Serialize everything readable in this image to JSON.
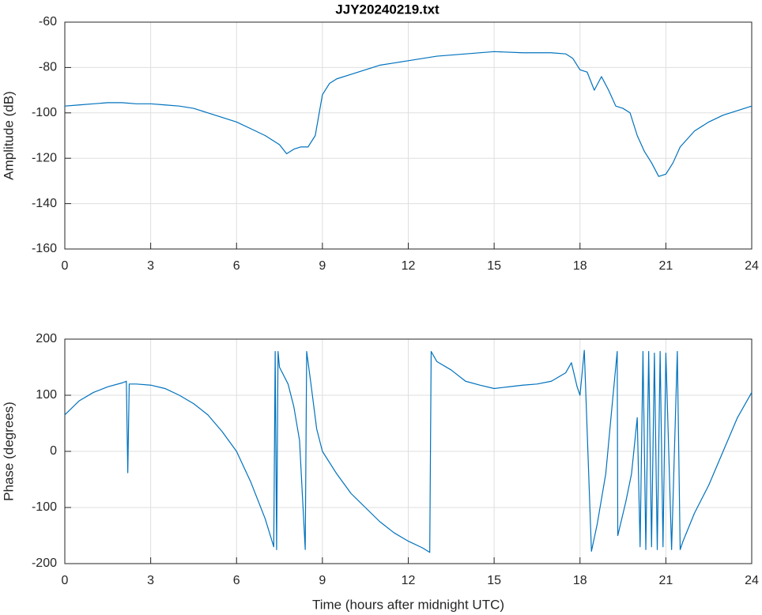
{
  "chart_data": [
    {
      "type": "line",
      "title": "JJY20240219.txt",
      "ylabel": "Amplitude (dB)",
      "xlim": [
        0,
        24
      ],
      "xticks": [
        0,
        3,
        6,
        9,
        12,
        15,
        18,
        21,
        24
      ],
      "ylim": [
        -160,
        -60
      ],
      "yticks": [
        -160,
        -140,
        -120,
        -100,
        -80,
        -60
      ],
      "grid": true,
      "series": [
        {
          "name": "Amplitude",
          "color": "#0072bd",
          "x": [
            0,
            0.5,
            1,
            1.5,
            2,
            2.5,
            3,
            3.5,
            4,
            4.5,
            5,
            5.5,
            6,
            6.5,
            7,
            7.5,
            7.75,
            8,
            8.25,
            8.5,
            8.75,
            9,
            9.25,
            9.5,
            10,
            10.5,
            11,
            11.5,
            12,
            12.5,
            13,
            14,
            15,
            16,
            17,
            17.5,
            17.75,
            18,
            18.25,
            18.5,
            18.75,
            19,
            19.25,
            19.5,
            19.75,
            20,
            20.25,
            20.5,
            20.75,
            21,
            21.25,
            21.5,
            22,
            22.5,
            23,
            23.5,
            24
          ],
          "values": [
            -97,
            -96.5,
            -96,
            -95.5,
            -95.5,
            -96,
            -96,
            -96.5,
            -97,
            -98,
            -100,
            -102,
            -104,
            -107,
            -110,
            -114,
            -118,
            -116,
            -115,
            -115,
            -110,
            -92,
            -87,
            -85,
            -83,
            -81,
            -79,
            -78,
            -77,
            -76,
            -75,
            -74,
            -73,
            -73.5,
            -73.5,
            -74,
            -76,
            -81,
            -82,
            -90,
            -84,
            -90,
            -97,
            -98,
            -100,
            -110,
            -117,
            -122,
            -128,
            -127,
            -122,
            -115,
            -108,
            -104,
            -101,
            -99,
            -97
          ]
        }
      ]
    },
    {
      "type": "line",
      "ylabel": "Phase (degrees)",
      "xlabel": "Time (hours after midnight UTC)",
      "xlim": [
        0,
        24
      ],
      "xticks": [
        0,
        3,
        6,
        9,
        12,
        15,
        18,
        21,
        24
      ],
      "ylim": [
        -200,
        200
      ],
      "yticks": [
        -200,
        -100,
        0,
        100,
        200
      ],
      "grid": true,
      "series": [
        {
          "name": "Phase",
          "color": "#0072bd",
          "x": [
            0,
            0.5,
            1,
            1.5,
            2,
            2.15,
            2.2,
            2.25,
            2.5,
            3,
            3.5,
            4,
            4.5,
            5,
            5.5,
            6,
            6.5,
            7,
            7.3,
            7.35,
            7.4,
            7.45,
            7.5,
            7.8,
            8,
            8.2,
            8.4,
            8.45,
            8.6,
            8.8,
            9,
            9.5,
            10,
            10.5,
            11,
            11.5,
            12,
            12.5,
            12.75,
            12.8,
            13,
            13.5,
            14,
            14.5,
            15,
            15.5,
            16,
            16.5,
            17,
            17.5,
            17.7,
            17.9,
            18,
            18.15,
            18.4,
            18.6,
            18.9,
            19.1,
            19.3,
            19.32,
            19.6,
            19.8,
            20,
            20.1,
            20.2,
            20.3,
            20.4,
            20.5,
            20.6,
            20.7,
            20.8,
            20.9,
            21,
            21.2,
            21.4,
            21.5,
            21.6,
            22,
            22.5,
            23,
            23.5,
            24
          ],
          "values": [
            65,
            90,
            105,
            115,
            122,
            125,
            -38,
            120,
            120,
            118,
            112,
            100,
            85,
            65,
            35,
            0,
            -55,
            -120,
            -170,
            178,
            -175,
            178,
            150,
            120,
            80,
            20,
            -175,
            178,
            120,
            40,
            0,
            -40,
            -75,
            -100,
            -125,
            -145,
            -160,
            -172,
            -180,
            178,
            160,
            145,
            125,
            118,
            112,
            115,
            118,
            120,
            125,
            140,
            158,
            115,
            100,
            180,
            -178,
            -130,
            -40,
            70,
            178,
            -150,
            -90,
            -40,
            60,
            -170,
            178,
            -175,
            178,
            -170,
            175,
            -175,
            178,
            -170,
            175,
            -175,
            178,
            -175,
            -160,
            -110,
            -60,
            0,
            60,
            105
          ]
        }
      ]
    }
  ]
}
